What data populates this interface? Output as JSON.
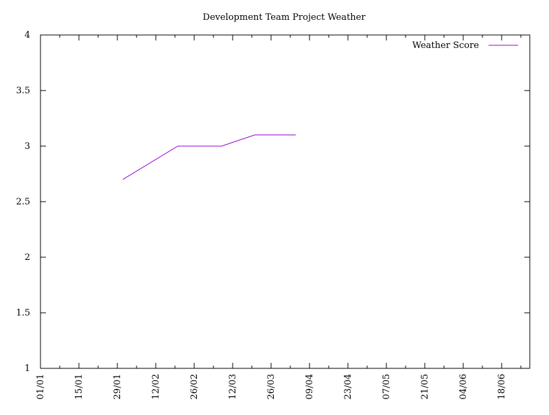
{
  "chart_data": {
    "type": "line",
    "title": "Development Team Project Weather",
    "xlabel": "",
    "ylabel": "",
    "x_axis": {
      "kind": "date",
      "range": [
        "01/01",
        "02/07"
      ],
      "tick_labels": [
        "01/01",
        "15/01",
        "29/01",
        "12/02",
        "26/02",
        "12/03",
        "26/03",
        "09/04",
        "23/04",
        "07/05",
        "21/05",
        "04/06",
        "18/06"
      ]
    },
    "ylim": [
      1,
      4
    ],
    "y_ticks": [
      "1",
      "1.5",
      "2",
      "2.5",
      "3",
      "3.5",
      "4"
    ],
    "grid": false,
    "legend": {
      "position": "top-right"
    },
    "series": [
      {
        "name": "Weather Score",
        "color": "#9400d3",
        "points": [
          {
            "x": "31/01",
            "y": 2.7
          },
          {
            "x": "20/02",
            "y": 3.0
          },
          {
            "x": "08/03",
            "y": 3.0
          },
          {
            "x": "20/03",
            "y": 3.1
          },
          {
            "x": "04/04",
            "y": 3.1
          }
        ]
      }
    ]
  }
}
